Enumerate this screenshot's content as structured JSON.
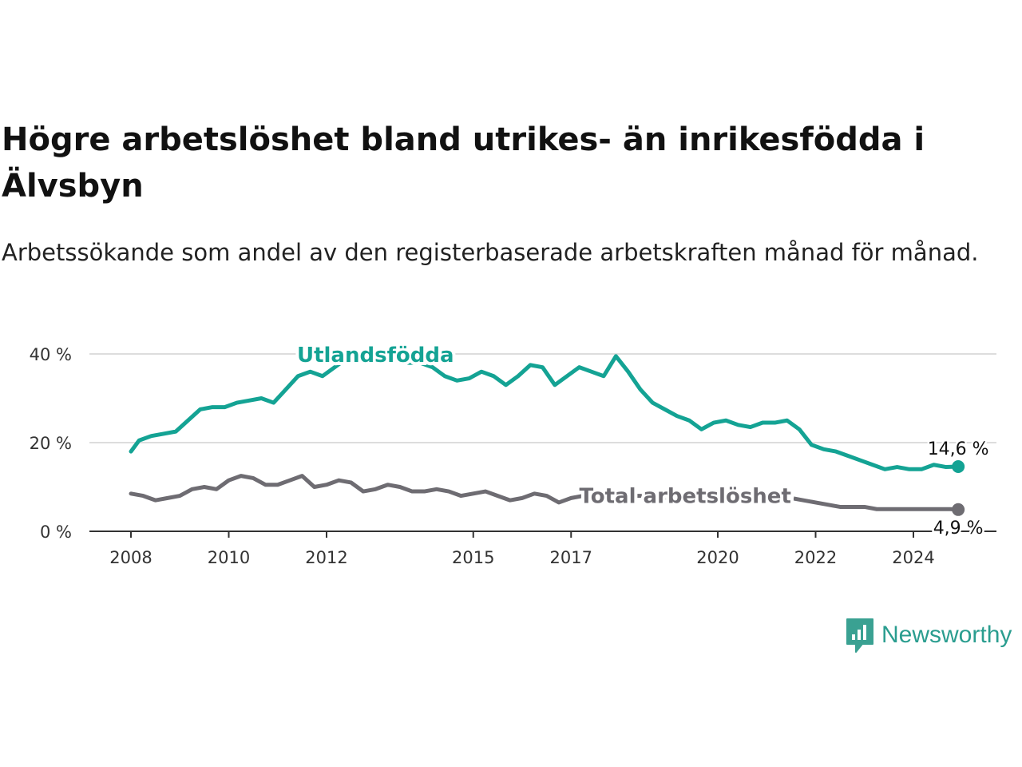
{
  "title": "Högre arbetslöshet bland utrikes- än inrikesfödda i Älvsbyn",
  "subtitle": "Arbetssökande som andel av den registerbaserade arbetskraften månad för månad.",
  "brand": {
    "name": "Newsworthy",
    "icon": "newsworthy-logo-icon",
    "color": "#3aa192"
  },
  "chart_data": {
    "type": "line",
    "title": "Högre arbetslöshet bland utrikes- än inrikesfödda i Älvsbyn",
    "subtitle": "Arbetssökande som andel av den registerbaserade arbetskraften månad för månad.",
    "xlabel": "",
    "ylabel": "",
    "xlim": [
      "2008-01",
      "2025-01"
    ],
    "ylim": [
      0,
      42
    ],
    "x_ticks": [
      "2008",
      "2010",
      "2012",
      "2015",
      "2017",
      "2020",
      "2022",
      "2024"
    ],
    "y_ticks": [
      "0 %",
      "20 %",
      "40 %"
    ],
    "grid": true,
    "legend": "none (inline labels)",
    "series": [
      {
        "name": "Utlandsfödda",
        "color": "#14a394",
        "end_label": "14,6 %",
        "points": [
          [
            "2008-01",
            18
          ],
          [
            "2008-03",
            20.5
          ],
          [
            "2008-06",
            21.5
          ],
          [
            "2008-09",
            22
          ],
          [
            "2008-12",
            22.5
          ],
          [
            "2009-03",
            25
          ],
          [
            "2009-06",
            27.5
          ],
          [
            "2009-09",
            28
          ],
          [
            "2009-12",
            28
          ],
          [
            "2010-03",
            29
          ],
          [
            "2010-06",
            29.5
          ],
          [
            "2010-09",
            30
          ],
          [
            "2010-12",
            29
          ],
          [
            "2011-03",
            32
          ],
          [
            "2011-06",
            35
          ],
          [
            "2011-09",
            36
          ],
          [
            "2011-12",
            35
          ],
          [
            "2012-03",
            37
          ],
          [
            "2012-06",
            39
          ],
          [
            "2012-09",
            39
          ],
          [
            "2012-12",
            39
          ],
          [
            "2013-03",
            38.5
          ],
          [
            "2013-06",
            38.5
          ],
          [
            "2013-09",
            38
          ],
          [
            "2013-12",
            38
          ],
          [
            "2014-03",
            37
          ],
          [
            "2014-06",
            35
          ],
          [
            "2014-09",
            34
          ],
          [
            "2014-12",
            34.5
          ],
          [
            "2015-03",
            36
          ],
          [
            "2015-06",
            35
          ],
          [
            "2015-09",
            33
          ],
          [
            "2015-12",
            35
          ],
          [
            "2016-03",
            37.5
          ],
          [
            "2016-06",
            37
          ],
          [
            "2016-09",
            33
          ],
          [
            "2016-12",
            35
          ],
          [
            "2017-03",
            37
          ],
          [
            "2017-06",
            36
          ],
          [
            "2017-09",
            35
          ],
          [
            "2017-12",
            39.5
          ],
          [
            "2018-03",
            36
          ],
          [
            "2018-06",
            32
          ],
          [
            "2018-09",
            29
          ],
          [
            "2018-12",
            27.5
          ],
          [
            "2019-03",
            26
          ],
          [
            "2019-06",
            25
          ],
          [
            "2019-09",
            23
          ],
          [
            "2019-12",
            24.5
          ],
          [
            "2020-03",
            25
          ],
          [
            "2020-06",
            24
          ],
          [
            "2020-09",
            23.5
          ],
          [
            "2020-12",
            24.5
          ],
          [
            "2021-03",
            24.5
          ],
          [
            "2021-06",
            25
          ],
          [
            "2021-09",
            23
          ],
          [
            "2021-12",
            19.5
          ],
          [
            "2022-03",
            18.5
          ],
          [
            "2022-06",
            18
          ],
          [
            "2022-09",
            17
          ],
          [
            "2022-12",
            16
          ],
          [
            "2023-03",
            15
          ],
          [
            "2023-06",
            14
          ],
          [
            "2023-09",
            14.5
          ],
          [
            "2023-12",
            14
          ],
          [
            "2024-03",
            14
          ],
          [
            "2024-06",
            15
          ],
          [
            "2024-09",
            14.5
          ],
          [
            "2024-12",
            14.6
          ]
        ]
      },
      {
        "name": "Total arbetslöshet",
        "color": "#6e6c72",
        "end_label": "4,9 %",
        "points": [
          [
            "2008-01",
            8.5
          ],
          [
            "2008-04",
            8
          ],
          [
            "2008-07",
            7
          ],
          [
            "2008-10",
            7.5
          ],
          [
            "2009-01",
            8
          ],
          [
            "2009-04",
            9.5
          ],
          [
            "2009-07",
            10
          ],
          [
            "2009-10",
            9.5
          ],
          [
            "2010-01",
            11.5
          ],
          [
            "2010-04",
            12.5
          ],
          [
            "2010-07",
            12
          ],
          [
            "2010-10",
            10.5
          ],
          [
            "2011-01",
            10.5
          ],
          [
            "2011-04",
            11.5
          ],
          [
            "2011-07",
            12.5
          ],
          [
            "2011-10",
            10
          ],
          [
            "2012-01",
            10.5
          ],
          [
            "2012-04",
            11.5
          ],
          [
            "2012-07",
            11
          ],
          [
            "2012-10",
            9
          ],
          [
            "2013-01",
            9.5
          ],
          [
            "2013-04",
            10.5
          ],
          [
            "2013-07",
            10
          ],
          [
            "2013-10",
            9
          ],
          [
            "2014-01",
            9
          ],
          [
            "2014-04",
            9.5
          ],
          [
            "2014-07",
            9
          ],
          [
            "2014-10",
            8
          ],
          [
            "2015-01",
            8.5
          ],
          [
            "2015-04",
            9
          ],
          [
            "2015-07",
            8
          ],
          [
            "2015-10",
            7
          ],
          [
            "2016-01",
            7.5
          ],
          [
            "2016-04",
            8.5
          ],
          [
            "2016-07",
            8
          ],
          [
            "2016-10",
            6.5
          ],
          [
            "2017-01",
            7.5
          ],
          [
            "2017-04",
            8
          ],
          [
            "2017-07",
            8
          ],
          [
            "2017-10",
            8
          ],
          [
            "2018-01",
            8
          ],
          [
            "2018-04",
            8
          ],
          [
            "2018-07",
            8
          ],
          [
            "2018-10",
            7.5
          ],
          [
            "2019-01",
            7.5
          ],
          [
            "2019-04",
            7.5
          ],
          [
            "2019-07",
            7.5
          ],
          [
            "2019-10",
            7.5
          ],
          [
            "2020-01",
            7.5
          ],
          [
            "2020-04",
            8
          ],
          [
            "2020-07",
            8
          ],
          [
            "2020-10",
            7.5
          ],
          [
            "2021-01",
            7.5
          ],
          [
            "2021-04",
            7.5
          ],
          [
            "2021-07",
            7.5
          ],
          [
            "2021-10",
            7
          ],
          [
            "2022-01",
            6.5
          ],
          [
            "2022-04",
            6
          ],
          [
            "2022-07",
            5.5
          ],
          [
            "2022-10",
            5.5
          ],
          [
            "2023-01",
            5.5
          ],
          [
            "2023-04",
            5
          ],
          [
            "2023-07",
            5
          ],
          [
            "2023-10",
            5
          ],
          [
            "2024-01",
            5
          ],
          [
            "2024-04",
            5
          ],
          [
            "2024-07",
            5
          ],
          [
            "2024-10",
            5
          ],
          [
            "2024-12",
            4.9
          ]
        ]
      }
    ]
  }
}
